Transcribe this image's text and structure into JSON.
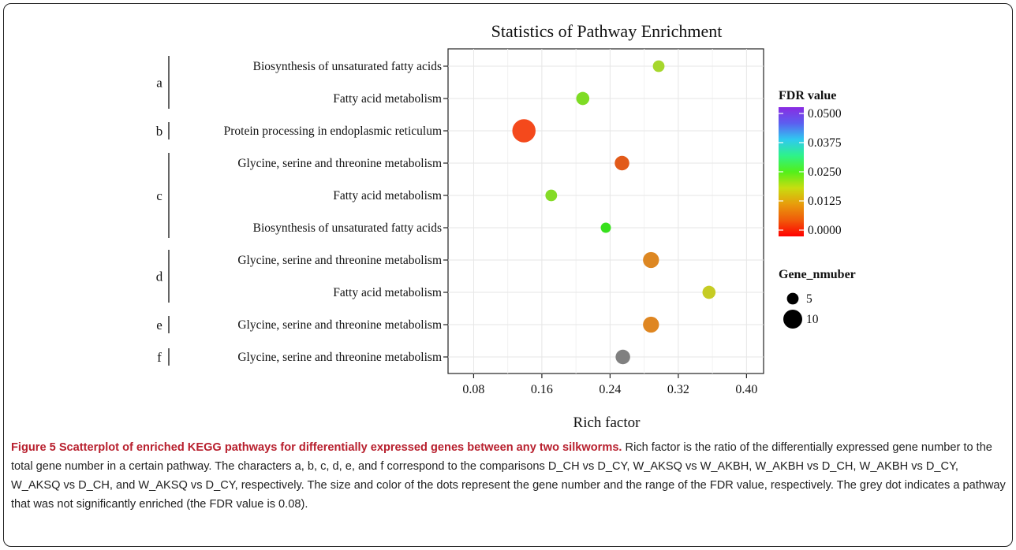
{
  "chart_data": {
    "type": "scatter",
    "title": "Statistics of Pathway Enrichment",
    "xlabel": "Rich factor",
    "xlim": [
      0.05,
      0.42
    ],
    "xticks": [
      "0.08",
      "0.16",
      "0.24",
      "0.32",
      "0.40"
    ],
    "xtick_values": [
      0.08,
      0.16,
      0.24,
      0.32,
      0.4
    ],
    "groups": [
      {
        "label": "a",
        "rows": [
          0,
          1
        ]
      },
      {
        "label": "b",
        "rows": [
          2
        ]
      },
      {
        "label": "c",
        "rows": [
          3,
          4,
          5
        ]
      },
      {
        "label": "d",
        "rows": [
          6,
          7
        ]
      },
      {
        "label": "e",
        "rows": [
          8
        ]
      },
      {
        "label": "f",
        "rows": [
          9
        ]
      }
    ],
    "points": [
      {
        "pathway": "Biosynthesis of unsaturated fatty acids",
        "group": "a",
        "rich_factor": 0.297,
        "fdr": 0.018,
        "gene_number": 5,
        "color": "#a6d72c"
      },
      {
        "pathway": "Fatty acid metabolism",
        "group": "a",
        "rich_factor": 0.208,
        "fdr": 0.019,
        "gene_number": 6,
        "color": "#7edc24"
      },
      {
        "pathway": "Protein processing in endoplasmic reticulum",
        "group": "b",
        "rich_factor": 0.139,
        "fdr": 0.002,
        "gene_number": 13,
        "color": "#f4491c"
      },
      {
        "pathway": "Glycine, serine and threonine metabolism",
        "group": "c",
        "rich_factor": 0.254,
        "fdr": 0.004,
        "gene_number": 7,
        "color": "#e25a19"
      },
      {
        "pathway": "Fatty acid metabolism",
        "group": "c",
        "rich_factor": 0.171,
        "fdr": 0.019,
        "gene_number": 5,
        "color": "#84db26"
      },
      {
        "pathway": "Biosynthesis of unsaturated fatty acids",
        "group": "c",
        "rich_factor": 0.235,
        "fdr": 0.022,
        "gene_number": 4,
        "color": "#37e01c"
      },
      {
        "pathway": "Glycine, serine and threonine metabolism",
        "group": "d",
        "rich_factor": 0.288,
        "fdr": 0.008,
        "gene_number": 8,
        "color": "#dd8722"
      },
      {
        "pathway": "Fatty acid metabolism",
        "group": "d",
        "rich_factor": 0.356,
        "fdr": 0.014,
        "gene_number": 6,
        "color": "#c6cc24"
      },
      {
        "pathway": "Glycine, serine and threonine metabolism",
        "group": "e",
        "rich_factor": 0.288,
        "fdr": 0.008,
        "gene_number": 8,
        "color": "#df8621"
      },
      {
        "pathway": "Glycine, serine and threonine metabolism",
        "group": "f",
        "rich_factor": 0.255,
        "fdr": 0.08,
        "gene_number": 7,
        "color": "#808080"
      }
    ],
    "legend_color": {
      "title": "FDR value",
      "labels": [
        "0.0500",
        "0.0375",
        "0.0250",
        "0.0125",
        "0.0000"
      ],
      "gradient": [
        "#8a2be2",
        "#5b5ff0",
        "#2fc9f0",
        "#2ef28a",
        "#52f01a",
        "#c8dd10",
        "#e89c0c",
        "#f05a0a",
        "#ff0000"
      ]
    },
    "legend_size": {
      "title": "Gene_nmuber",
      "entries": [
        {
          "label": "5",
          "value": 5
        },
        {
          "label": "10",
          "value": 10
        }
      ]
    },
    "grid": true,
    "legend_position": "right"
  },
  "caption": {
    "lead": "Figure 5 Scatterplot of enriched KEGG pathways for differentially expressed genes between any two silkworms.",
    "body": " Rich factor is the ratio of the differentially expressed gene number to the total gene number in a certain pathway. The characters a, b, c, d, e, and f correspond to the comparisons D_CH vs D_CY, W_AKSQ vs W_AKBH, W_AKBH vs D_CH, W_AKBH vs D_CY, W_AKSQ vs D_CH, and W_AKSQ vs D_CY, respectively. The size and color of the dots represent the gene number and the range of the FDR value, respectively. The grey dot indicates a pathway that was not significantly enriched (the FDR value is 0.08)."
  }
}
